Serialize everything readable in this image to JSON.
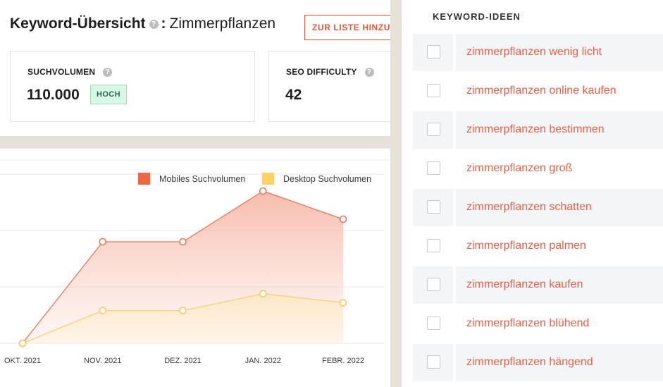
{
  "header": {
    "title": "Keyword-Übersicht",
    "help": "?",
    "separator": ":",
    "keyword": "Zimmerpflanzen",
    "add_button": "ZUR LISTE HINZUFÜGEN"
  },
  "metrics": {
    "search_volume": {
      "label": "SUCHVOLUMEN",
      "value": "110.000",
      "badge": "HOCH"
    },
    "seo_difficulty": {
      "label": "SEO DIFFICULTY",
      "value": "42"
    }
  },
  "chart_data": {
    "type": "area",
    "x": [
      "OKT. 2021",
      "NOV. 2021",
      "DEZ. 2021",
      "JAN. 2022",
      "FEBR. 2022"
    ],
    "ylim": [
      0,
      3
    ],
    "grid": true,
    "legend_placement": "top-right",
    "series": [
      {
        "name": "Mobiles Suchvolumen",
        "color": "#ea6a48",
        "values": [
          0,
          1.8,
          1.8,
          2.7,
          2.2
        ]
      },
      {
        "name": "Desktop Suchvolumen",
        "color": "#fdd06a",
        "values": [
          0,
          0.58,
          0.58,
          0.88,
          0.72
        ]
      }
    ]
  },
  "ideas": {
    "header": "KEYWORD-IDEEN",
    "items": [
      "zimmerpflanzen wenig licht",
      "zimmerpflanzen online kaufen",
      "zimmerpflanzen bestimmen",
      "zimmerpflanzen groß",
      "zimmerpflanzen schatten",
      "zimmerpflanzen palmen",
      "zimmerpflanzen kaufen",
      "zimmerpflanzen blühend",
      "zimmerpflanzen hängend"
    ]
  }
}
